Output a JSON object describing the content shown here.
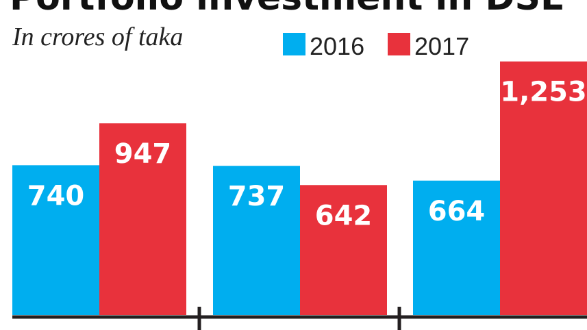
{
  "chart_data": {
    "type": "bar",
    "title": "Portfolio investment in DSE",
    "subtitle": "In crores of taka",
    "categories": [
      "",
      "",
      ""
    ],
    "series": [
      {
        "name": "2016",
        "color": "#00aeef",
        "values": [
          740,
          737,
          664
        ],
        "labels": [
          "740",
          "737",
          "664"
        ]
      },
      {
        "name": "2017",
        "color": "#e8323c",
        "values": [
          947,
          642,
          1253
        ],
        "labels": [
          "947",
          "642",
          "1,253"
        ]
      }
    ],
    "xlabel": "",
    "ylabel": "",
    "ylim": [
      0,
      1300
    ],
    "grid": false,
    "legend_position": "top-right"
  }
}
